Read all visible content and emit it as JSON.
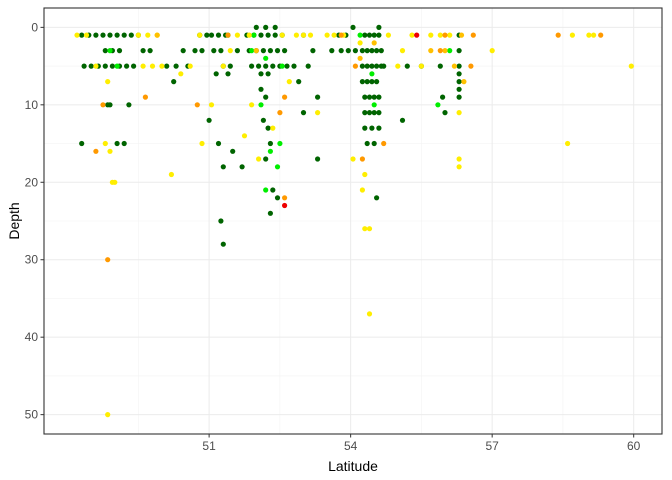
{
  "chart_data": {
    "type": "scatter",
    "title": "",
    "xlabel": "Latitude",
    "ylabel": "Depth",
    "xlim": [
      47.5,
      60.6
    ],
    "ylim": [
      52.5,
      -2.5
    ],
    "y_reversed": true,
    "x_ticks": [
      51,
      54,
      57,
      60
    ],
    "y_ticks": [
      0,
      10,
      20,
      30,
      40,
      50
    ],
    "grid": true,
    "legend": "none",
    "colors": {
      "dark_green": "#006400",
      "green": "#00ee00",
      "yellow": "#ffee00",
      "gold": "#ffc000",
      "orange": "#ff9900",
      "red": "#ee0000",
      "panel_border": "#333333",
      "grid": "#ebebeb"
    },
    "series": [
      {
        "color": "dark_green",
        "points": [
          [
            48.3,
            1
          ],
          [
            48.45,
            1
          ],
          [
            48.6,
            1
          ],
          [
            48.75,
            1
          ],
          [
            48.9,
            1
          ],
          [
            49.05,
            1
          ],
          [
            49.2,
            1
          ],
          [
            49.35,
            1
          ],
          [
            49.5,
            1
          ],
          [
            48.35,
            5
          ],
          [
            48.5,
            5
          ],
          [
            48.65,
            5
          ],
          [
            48.8,
            5
          ],
          [
            48.95,
            5
          ],
          [
            49.1,
            5
          ],
          [
            49.25,
            5
          ],
          [
            49.4,
            5
          ],
          [
            48.8,
            3
          ],
          [
            48.95,
            3
          ],
          [
            49.1,
            3
          ],
          [
            48.9,
            10
          ],
          [
            48.85,
            10
          ],
          [
            48.3,
            15
          ],
          [
            49.05,
            15
          ],
          [
            49.2,
            15
          ],
          [
            49.3,
            10
          ],
          [
            49.6,
            3
          ],
          [
            49.75,
            3
          ],
          [
            50.1,
            5
          ],
          [
            50.25,
            7
          ],
          [
            50.3,
            5
          ],
          [
            50.45,
            3
          ],
          [
            50.55,
            5
          ],
          [
            50.7,
            3
          ],
          [
            50.8,
            1
          ],
          [
            50.95,
            1
          ],
          [
            50.85,
            3
          ],
          [
            51.05,
            1
          ],
          [
            51.2,
            1
          ],
          [
            51.35,
            1
          ],
          [
            51.1,
            3
          ],
          [
            51.25,
            3
          ],
          [
            51.3,
            5
          ],
          [
            51.45,
            5
          ],
          [
            51.6,
            3
          ],
          [
            51.15,
            6
          ],
          [
            51.4,
            6
          ],
          [
            51.0,
            12
          ],
          [
            51.2,
            15
          ],
          [
            51.3,
            18
          ],
          [
            51.5,
            16
          ],
          [
            51.7,
            18
          ],
          [
            51.8,
            1
          ],
          [
            51.95,
            1
          ],
          [
            52.1,
            1
          ],
          [
            52.25,
            1
          ],
          [
            52.4,
            1
          ],
          [
            52.55,
            1
          ],
          [
            51.85,
            3
          ],
          [
            52.0,
            3
          ],
          [
            52.15,
            3
          ],
          [
            52.3,
            3
          ],
          [
            52.45,
            3
          ],
          [
            52.6,
            3
          ],
          [
            51.9,
            5
          ],
          [
            52.05,
            5
          ],
          [
            52.2,
            5
          ],
          [
            52.35,
            5
          ],
          [
            52.5,
            5
          ],
          [
            52.65,
            5
          ],
          [
            52.8,
            5
          ],
          [
            52.1,
            6
          ],
          [
            52.25,
            6
          ],
          [
            52.1,
            8
          ],
          [
            52.2,
            9
          ],
          [
            52.15,
            12
          ],
          [
            52.25,
            13
          ],
          [
            52.3,
            15
          ],
          [
            52.2,
            17
          ],
          [
            52.35,
            21
          ],
          [
            52.45,
            22
          ],
          [
            52.3,
            24
          ],
          [
            51.25,
            25
          ],
          [
            51.3,
            28
          ],
          [
            52.0,
            0
          ],
          [
            52.2,
            0
          ],
          [
            52.4,
            0
          ],
          [
            53.0,
            1
          ],
          [
            53.2,
            3
          ],
          [
            53.1,
            5
          ],
          [
            52.9,
            7
          ],
          [
            53.3,
            9
          ],
          [
            53.0,
            11
          ],
          [
            53.3,
            17
          ],
          [
            53.6,
            3
          ],
          [
            53.75,
            1
          ],
          [
            53.9,
            1
          ],
          [
            54.05,
            0
          ],
          [
            53.8,
            3
          ],
          [
            53.95,
            3
          ],
          [
            54.1,
            3
          ],
          [
            54.3,
            1
          ],
          [
            54.4,
            1
          ],
          [
            54.5,
            1
          ],
          [
            54.6,
            1
          ],
          [
            54.25,
            3
          ],
          [
            54.35,
            3
          ],
          [
            54.45,
            3
          ],
          [
            54.55,
            3
          ],
          [
            54.65,
            3
          ],
          [
            54.25,
            5
          ],
          [
            54.35,
            5
          ],
          [
            54.45,
            5
          ],
          [
            54.55,
            5
          ],
          [
            54.65,
            5
          ],
          [
            54.25,
            7
          ],
          [
            54.35,
            7
          ],
          [
            54.45,
            7
          ],
          [
            54.55,
            7
          ],
          [
            54.3,
            9
          ],
          [
            54.4,
            9
          ],
          [
            54.5,
            9
          ],
          [
            54.6,
            9
          ],
          [
            54.3,
            11
          ],
          [
            54.4,
            11
          ],
          [
            54.5,
            11
          ],
          [
            54.6,
            11
          ],
          [
            54.3,
            13
          ],
          [
            54.45,
            13
          ],
          [
            54.6,
            13
          ],
          [
            54.35,
            15
          ],
          [
            54.5,
            15
          ],
          [
            54.55,
            22
          ],
          [
            54.6,
            0
          ],
          [
            54.7,
            5
          ],
          [
            55.1,
            12
          ],
          [
            56.3,
            1
          ],
          [
            56.3,
            3
          ],
          [
            56.3,
            5
          ],
          [
            56.3,
            6
          ],
          [
            56.3,
            7
          ],
          [
            56.3,
            8
          ],
          [
            56.3,
            9
          ],
          [
            55.9,
            5
          ],
          [
            55.95,
            9
          ],
          [
            56.0,
            11
          ],
          [
            55.2,
            5
          ],
          [
            55.5,
            5
          ]
        ]
      },
      {
        "color": "green",
        "points": [
          [
            48.9,
            3
          ],
          [
            49.05,
            5
          ],
          [
            51.4,
            1
          ],
          [
            51.9,
            3
          ],
          [
            52.2,
            4
          ],
          [
            52.3,
            16
          ],
          [
            52.5,
            15
          ],
          [
            52.2,
            21
          ],
          [
            52.45,
            18
          ],
          [
            52.55,
            5
          ],
          [
            52.1,
            10
          ],
          [
            51.95,
            1
          ],
          [
            54.2,
            1
          ],
          [
            54.45,
            6
          ],
          [
            54.5,
            10
          ],
          [
            56.1,
            3
          ],
          [
            55.85,
            10
          ]
        ]
      },
      {
        "color": "yellow",
        "points": [
          [
            48.2,
            1
          ],
          [
            48.4,
            1
          ],
          [
            48.6,
            5
          ],
          [
            49.5,
            1
          ],
          [
            49.7,
            1
          ],
          [
            49.9,
            1
          ],
          [
            49.6,
            5
          ],
          [
            49.8,
            5
          ],
          [
            50.0,
            5
          ],
          [
            48.9,
            16
          ],
          [
            48.8,
            15
          ],
          [
            48.95,
            20
          ],
          [
            49.0,
            20
          ],
          [
            48.85,
            7
          ],
          [
            50.2,
            19
          ],
          [
            50.4,
            6
          ],
          [
            50.6,
            5
          ],
          [
            50.8,
            1
          ],
          [
            50.85,
            15
          ],
          [
            51.05,
            10
          ],
          [
            51.3,
            5
          ],
          [
            51.45,
            3
          ],
          [
            51.6,
            1
          ],
          [
            51.85,
            1
          ],
          [
            51.75,
            14
          ],
          [
            51.9,
            10
          ],
          [
            52.05,
            17
          ],
          [
            52.35,
            13
          ],
          [
            52.55,
            1
          ],
          [
            52.7,
            7
          ],
          [
            52.85,
            1
          ],
          [
            53.0,
            1
          ],
          [
            53.15,
            1
          ],
          [
            53.3,
            11
          ],
          [
            53.5,
            1
          ],
          [
            53.65,
            1
          ],
          [
            53.85,
            1
          ],
          [
            54.05,
            17
          ],
          [
            54.2,
            2
          ],
          [
            54.25,
            21
          ],
          [
            54.3,
            26
          ],
          [
            54.4,
            26
          ],
          [
            54.4,
            37
          ],
          [
            54.3,
            19
          ],
          [
            54.8,
            1
          ],
          [
            55.0,
            5
          ],
          [
            55.1,
            3
          ],
          [
            55.3,
            1
          ],
          [
            55.5,
            5
          ],
          [
            55.7,
            1
          ],
          [
            55.9,
            1
          ],
          [
            56.1,
            1
          ],
          [
            56.3,
            11
          ],
          [
            56.3,
            17
          ],
          [
            56.3,
            18
          ],
          [
            57.0,
            3
          ],
          [
            58.6,
            15
          ],
          [
            58.7,
            1
          ],
          [
            59.05,
            1
          ],
          [
            59.15,
            1
          ],
          [
            59.95,
            5
          ],
          [
            48.85,
            50
          ]
        ]
      },
      {
        "color": "gold",
        "points": [
          [
            49.9,
            1
          ],
          [
            52.0,
            3
          ],
          [
            54.2,
            4
          ],
          [
            54.5,
            2
          ],
          [
            56.0,
            3
          ],
          [
            56.2,
            5
          ],
          [
            56.35,
            1
          ],
          [
            56.4,
            7
          ],
          [
            55.7,
            3
          ]
        ]
      },
      {
        "color": "orange",
        "points": [
          [
            48.85,
            30
          ],
          [
            48.75,
            10
          ],
          [
            48.6,
            16
          ],
          [
            49.65,
            9
          ],
          [
            50.75,
            10
          ],
          [
            52.6,
            22
          ],
          [
            51.4,
            1
          ],
          [
            52.6,
            9
          ],
          [
            52.5,
            11
          ],
          [
            53.8,
            1
          ],
          [
            54.25,
            17
          ],
          [
            54.1,
            5
          ],
          [
            54.7,
            15
          ],
          [
            56.0,
            1
          ],
          [
            56.6,
            1
          ],
          [
            56.55,
            5
          ],
          [
            58.4,
            1
          ],
          [
            59.3,
            1
          ],
          [
            55.9,
            3
          ]
        ]
      },
      {
        "color": "red",
        "points": [
          [
            52.6,
            23
          ],
          [
            55.4,
            1
          ]
        ]
      }
    ]
  }
}
